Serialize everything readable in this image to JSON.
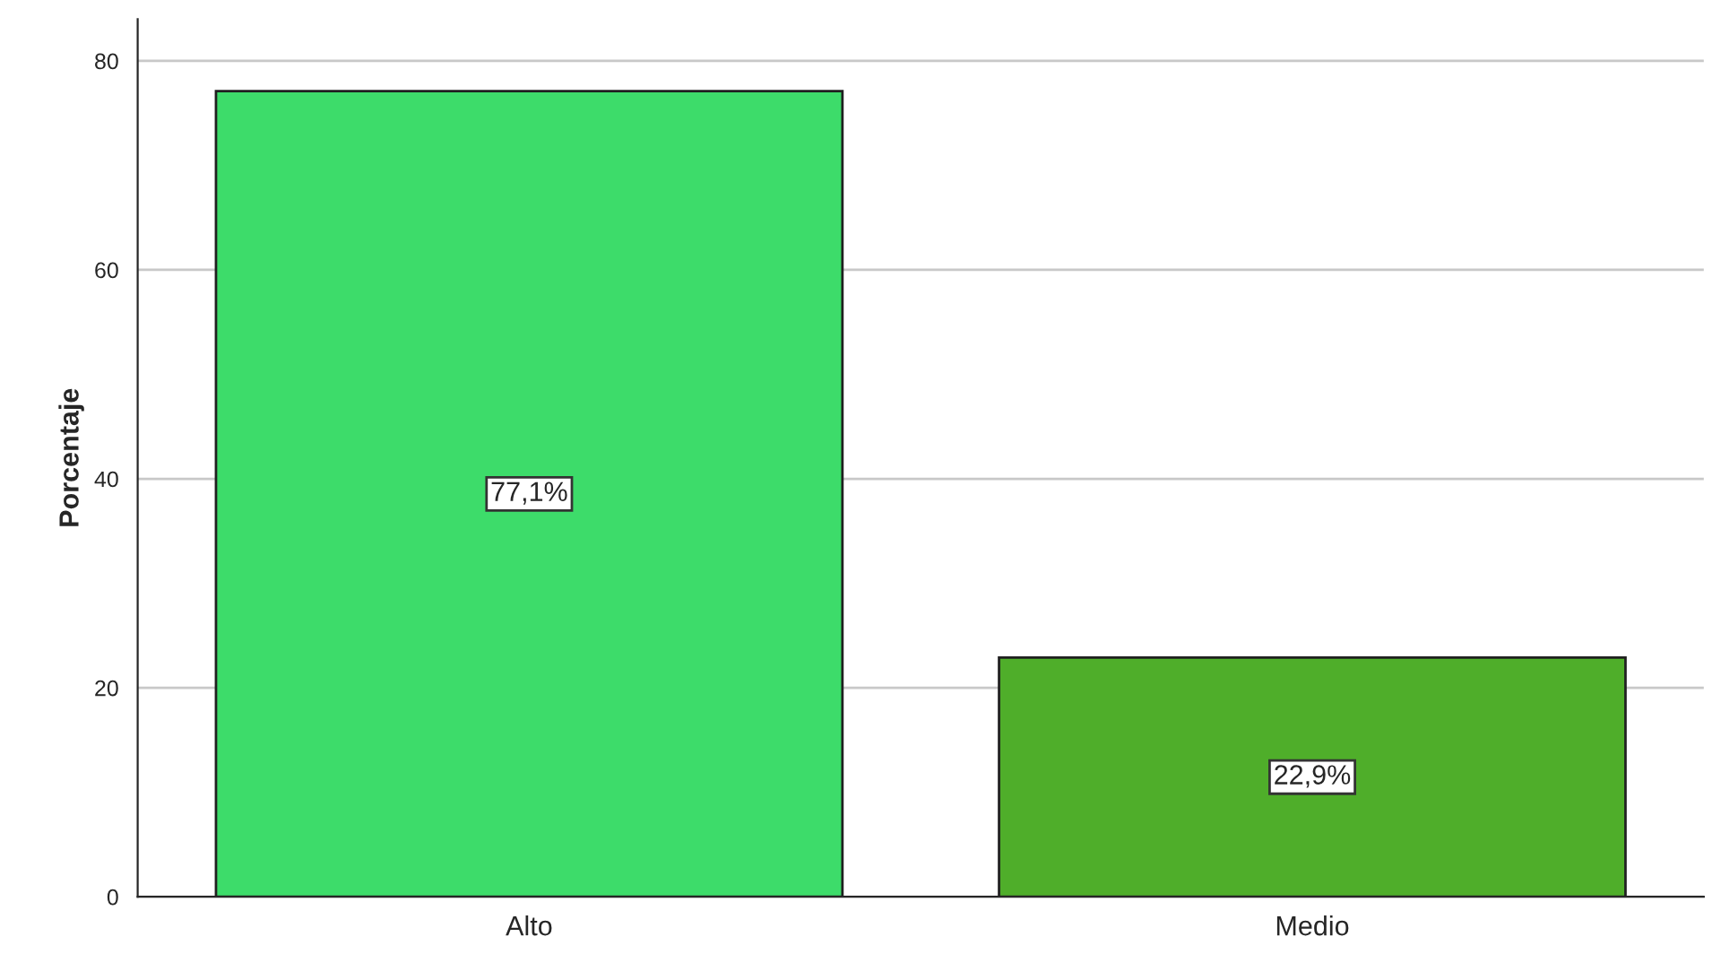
{
  "chart_data": {
    "type": "bar",
    "ylabel": "Porcentaje",
    "categories": [
      "Alto",
      "Medio"
    ],
    "values": [
      77.1,
      22.9
    ],
    "value_labels": [
      "77,1%",
      "22,9%"
    ],
    "colors": [
      "#3ddc6a",
      "#4fae2a"
    ],
    "ylim": [
      0,
      84
    ],
    "yticks": [
      0,
      20,
      40,
      60,
      80
    ],
    "grid": "y"
  }
}
